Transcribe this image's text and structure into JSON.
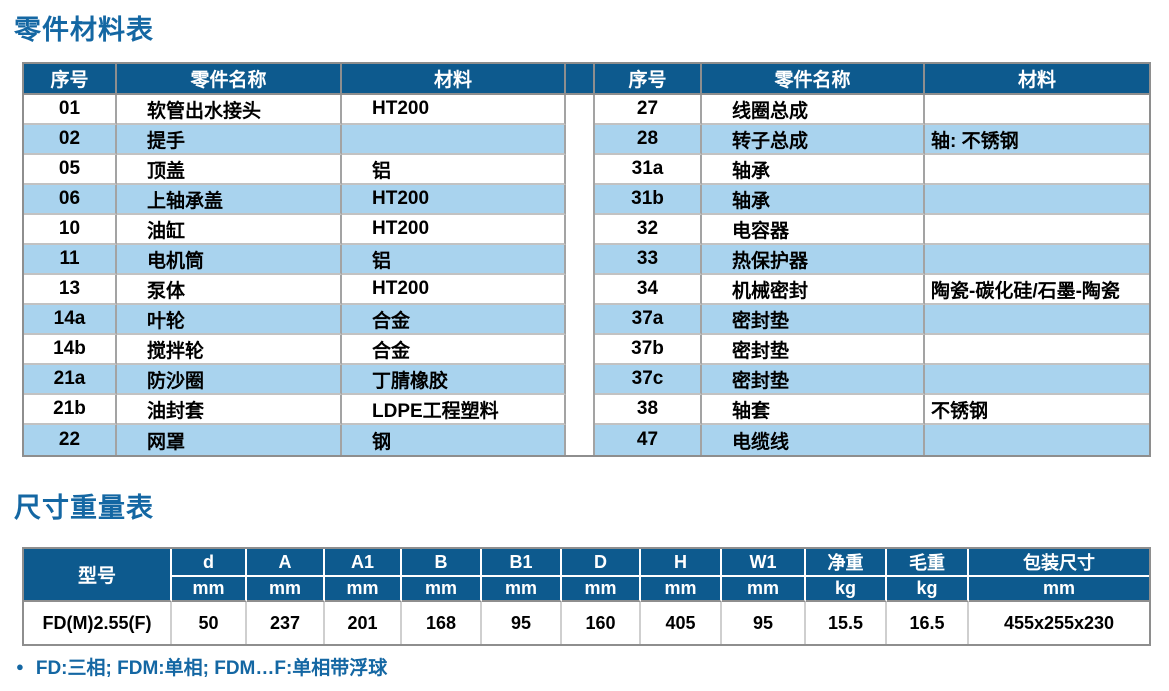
{
  "page": {
    "parts_section": {
      "title": "零件材料表",
      "columns": [
        "序号",
        "零件名称",
        "材料"
      ],
      "left_rows": [
        {
          "no": "01",
          "name": "软管出水接头",
          "material": "HT200"
        },
        {
          "no": "02",
          "name": "提手",
          "material": ""
        },
        {
          "no": "05",
          "name": "顶盖",
          "material": "铝"
        },
        {
          "no": "06",
          "name": "上轴承盖",
          "material": "HT200"
        },
        {
          "no": "10",
          "name": "油缸",
          "material": "HT200"
        },
        {
          "no": "11",
          "name": "电机筒",
          "material": "铝"
        },
        {
          "no": "13",
          "name": "泵体",
          "material": "HT200"
        },
        {
          "no": "14a",
          "name": "叶轮",
          "material": "合金"
        },
        {
          "no": "14b",
          "name": "搅拌轮",
          "material": "合金"
        },
        {
          "no": "21a",
          "name": "防沙圈",
          "material": "丁腈橡胶"
        },
        {
          "no": "21b",
          "name": "油封套",
          "material": "LDPE工程塑料"
        },
        {
          "no": "22",
          "name": "网罩",
          "material": "钢"
        }
      ],
      "right_rows": [
        {
          "no": "27",
          "name": "线圈总成",
          "material": ""
        },
        {
          "no": "28",
          "name": "转子总成",
          "material": "轴: 不锈钢"
        },
        {
          "no": "31a",
          "name": "轴承",
          "material": ""
        },
        {
          "no": "31b",
          "name": "轴承",
          "material": ""
        },
        {
          "no": "32",
          "name": "电容器",
          "material": ""
        },
        {
          "no": "33",
          "name": "热保护器",
          "material": ""
        },
        {
          "no": "34",
          "name": "机械密封",
          "material": "陶瓷-碳化硅/石墨-陶瓷"
        },
        {
          "no": "37a",
          "name": "密封垫",
          "material": ""
        },
        {
          "no": "37b",
          "name": "密封垫",
          "material": ""
        },
        {
          "no": "37c",
          "name": "密封垫",
          "material": ""
        },
        {
          "no": "38",
          "name": "轴套",
          "material": "不锈钢"
        },
        {
          "no": "47",
          "name": "电缆线",
          "material": ""
        }
      ]
    },
    "dims_section": {
      "title": "尺寸重量表",
      "model_header": "型号",
      "columns": [
        {
          "label": "d",
          "unit": "mm"
        },
        {
          "label": "A",
          "unit": "mm"
        },
        {
          "label": "A1",
          "unit": "mm"
        },
        {
          "label": "B",
          "unit": "mm"
        },
        {
          "label": "B1",
          "unit": "mm"
        },
        {
          "label": "D",
          "unit": "mm"
        },
        {
          "label": "H",
          "unit": "mm"
        },
        {
          "label": "W1",
          "unit": "mm"
        },
        {
          "label": "净重",
          "unit": "kg"
        },
        {
          "label": "毛重",
          "unit": "kg"
        },
        {
          "label": "包装尺寸",
          "unit": "mm"
        }
      ],
      "row": {
        "model": "FD(M)2.55(F)",
        "values": [
          "50",
          "237",
          "201",
          "168",
          "95",
          "160",
          "405",
          "95",
          "15.5",
          "16.5",
          "455x255x230"
        ]
      }
    },
    "footnote": {
      "bullet": "●",
      "text": "FD:三相; FDM:单相; FDM…F:单相带浮球"
    },
    "colors": {
      "header_bg": "#0d5a8e",
      "alt_row_bg": "#a9d3ee",
      "title_blue": "#1467a3"
    }
  }
}
